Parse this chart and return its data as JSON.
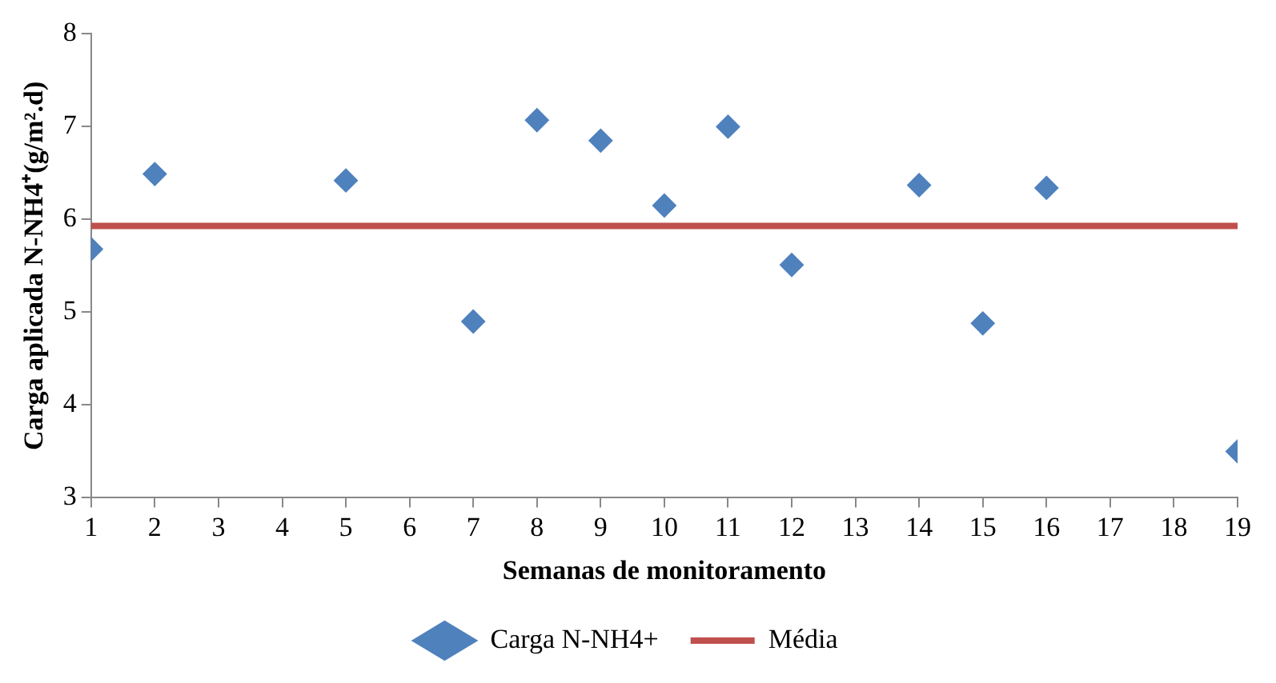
{
  "chart_data": {
    "type": "scatter",
    "xlabel": "Semanas de monitoramento",
    "ylabel": "Carga aplicada N-NH4⁺(g/m².d)",
    "xlim": [
      1,
      19
    ],
    "xticks": [
      1,
      2,
      3,
      4,
      5,
      6,
      7,
      8,
      9,
      10,
      11,
      12,
      13,
      14,
      15,
      16,
      17,
      18,
      19
    ],
    "ylim": [
      3,
      8
    ],
    "yticks": [
      3,
      4,
      5,
      6,
      7,
      8
    ],
    "grid": false,
    "legend": "bottom",
    "marker": "diamond",
    "series": [
      {
        "name": "Carga N-NH4+",
        "color": "#4f81bd",
        "x": [
          1,
          2,
          5,
          7,
          8,
          9,
          10,
          11,
          12,
          14,
          15,
          16,
          19
        ],
        "values": [
          5.68,
          6.49,
          6.42,
          4.9,
          7.07,
          6.85,
          6.15,
          7.0,
          5.51,
          6.37,
          4.88,
          6.34,
          3.5
        ]
      },
      {
        "name": "Média",
        "type": "line",
        "color": "#c0504d",
        "marker": "none",
        "line_style": "solid",
        "x": [
          1,
          19
        ],
        "values": [
          5.93,
          5.93
        ]
      }
    ]
  }
}
